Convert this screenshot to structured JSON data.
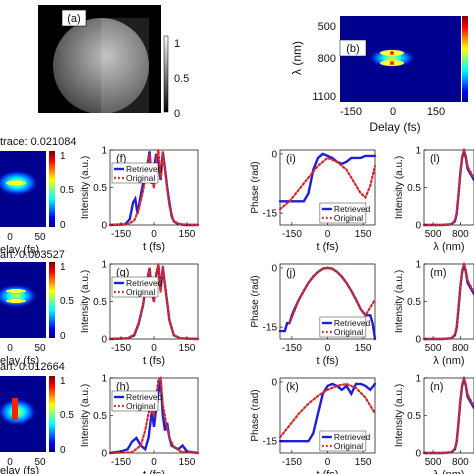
{
  "panels": {
    "a": {
      "label": "(a)",
      "colorbar_ticks": [
        "1",
        "0.5",
        "0"
      ]
    },
    "b": {
      "label": "(b)",
      "ylabel": "λ (nm)",
      "xlabel": "Delay (fs)",
      "yticks": [
        "500",
        "800",
        "1100"
      ],
      "xticks": [
        "-150",
        "0",
        "150"
      ]
    },
    "rows": [
      {
        "trace_label": "trace: 0.021084"
      },
      {
        "trace_label": "art: 0.003527"
      },
      {
        "trace_label": "art: 0.012664"
      }
    ],
    "trace_xticks": [
      "0",
      "50"
    ],
    "trace_xlabel": "elay (fs)",
    "trace_cbar_ticks": [
      "1",
      "0.5",
      "0"
    ]
  },
  "legend": {
    "retrieved": "Retrieved",
    "original": "Original"
  },
  "colors": {
    "retrieved": "#1f1fd6",
    "original": "#d42a2a"
  },
  "chart_data": [
    {
      "type": "line",
      "panel": "(f)",
      "xlabel": "t (fs)",
      "ylabel": "Intensity (a.u.)",
      "xticks": [
        "-150",
        "0",
        "150"
      ],
      "yticks": [
        "0",
        "0.5",
        "1"
      ],
      "xlim": [
        -200,
        200
      ],
      "ylim": [
        0,
        1
      ],
      "series": [
        {
          "name": "Retrieved",
          "x": [
            -200,
            -130,
            -110,
            -95,
            -85,
            -75,
            -60,
            -45,
            -30,
            -20,
            -10,
            0,
            10,
            20,
            30,
            40,
            50,
            60,
            70,
            80,
            90,
            105,
            120,
            140,
            200
          ],
          "y": [
            0,
            0.01,
            0.08,
            0.3,
            0.35,
            0.15,
            0.4,
            0.62,
            0.8,
            0.98,
            0.55,
            0.75,
            0.95,
            0.82,
            0.6,
            0.98,
            0.75,
            0.5,
            0.3,
            0.12,
            0.05,
            0.02,
            0.01,
            0,
            0
          ]
        },
        {
          "name": "Original",
          "x": [
            -200,
            -120,
            -90,
            -70,
            -50,
            -35,
            -20,
            -10,
            0,
            10,
            20,
            30,
            40,
            55,
            70,
            90,
            120,
            200
          ],
          "y": [
            0,
            0.01,
            0.06,
            0.2,
            0.45,
            0.7,
            0.95,
            0.6,
            0.5,
            0.88,
            1.0,
            0.62,
            0.98,
            0.6,
            0.25,
            0.05,
            0.01,
            0
          ]
        }
      ]
    },
    {
      "type": "line",
      "panel": "(g)",
      "xlabel": "t (fs)",
      "ylabel": "Intensity (a.u.)",
      "xticks": [
        "-150",
        "0",
        "150"
      ],
      "yticks": [
        "0",
        "0.5",
        "1"
      ],
      "xlim": [
        -200,
        200
      ],
      "ylim": [
        0,
        1
      ],
      "series": [
        {
          "name": "Retrieved",
          "x": [
            -200,
            -120,
            -90,
            -70,
            -50,
            -35,
            -20,
            -10,
            0,
            10,
            20,
            30,
            40,
            55,
            70,
            90,
            120,
            200
          ],
          "y": [
            0,
            0.01,
            0.05,
            0.2,
            0.45,
            0.72,
            0.95,
            0.62,
            0.5,
            0.85,
            0.98,
            0.65,
            0.95,
            0.6,
            0.25,
            0.05,
            0.01,
            0
          ]
        },
        {
          "name": "Original",
          "x": [
            -200,
            -120,
            -90,
            -70,
            -50,
            -35,
            -20,
            -10,
            0,
            10,
            20,
            30,
            40,
            55,
            70,
            90,
            120,
            200
          ],
          "y": [
            0,
            0.01,
            0.06,
            0.21,
            0.45,
            0.7,
            0.95,
            0.6,
            0.5,
            0.88,
            1.0,
            0.62,
            0.98,
            0.6,
            0.25,
            0.05,
            0.01,
            0
          ]
        }
      ]
    },
    {
      "type": "line",
      "panel": "(h)",
      "xlabel": "t (fs)",
      "ylabel": "Intensity (a.u.)",
      "xticks": [
        "-150",
        "0",
        "150"
      ],
      "yticks": [
        "0",
        "0.5",
        "1"
      ],
      "xlim": [
        -200,
        200
      ],
      "ylim": [
        0,
        1
      ],
      "series": [
        {
          "name": "Retrieved",
          "x": [
            -200,
            -150,
            -120,
            -100,
            -80,
            -60,
            -40,
            -25,
            -10,
            0,
            10,
            20,
            30,
            40,
            50,
            60,
            70,
            80,
            90,
            110,
            130,
            150,
            200
          ],
          "y": [
            0,
            0.02,
            0.05,
            0.15,
            0.2,
            0.1,
            0.05,
            0.2,
            0.55,
            0.35,
            0.6,
            0.8,
            0.98,
            0.5,
            0.3,
            0.4,
            0.2,
            0.1,
            0.08,
            0.05,
            0.1,
            0.02,
            0
          ]
        },
        {
          "name": "Original",
          "x": [
            -200,
            -100,
            -60,
            -40,
            -20,
            0,
            10,
            20,
            30,
            40,
            55,
            70,
            90,
            120,
            200
          ],
          "y": [
            0,
            0.01,
            0.1,
            0.3,
            0.6,
            0.5,
            0.75,
            0.98,
            1.0,
            0.65,
            0.4,
            0.2,
            0.08,
            0.02,
            0
          ]
        }
      ]
    },
    {
      "type": "line",
      "panel": "(i)",
      "xlabel": "t (fs)",
      "ylabel": "Phase (rad)",
      "xticks": [
        "-150",
        "0",
        "150"
      ],
      "yticks": [
        "0",
        "-15"
      ],
      "xlim": [
        -200,
        200
      ],
      "ylim": [
        -18,
        1
      ],
      "series": [
        {
          "name": "Retrieved",
          "x": [
            -200,
            -150,
            -120,
            -100,
            -80,
            -60,
            -40,
            -20,
            0,
            20,
            40,
            60,
            80,
            100,
            120,
            140,
            160,
            180,
            200
          ],
          "y": [
            -12,
            -12,
            -12,
            -12,
            -10,
            -4,
            -1,
            0,
            -0.5,
            -1,
            -2,
            -2.5,
            -2,
            -1,
            -1,
            -1,
            -0.5,
            -0.5,
            -0.5
          ]
        },
        {
          "name": "Original",
          "x": [
            -200,
            -160,
            -120,
            -80,
            -40,
            0,
            40,
            80,
            100,
            120,
            140,
            160,
            180,
            200
          ],
          "y": [
            -14,
            -12,
            -9,
            -6,
            -3,
            -1,
            -2,
            -4,
            -6,
            -8,
            -10,
            -11,
            -8,
            -3
          ]
        }
      ]
    },
    {
      "type": "line",
      "panel": "(j)",
      "xlabel": "t (fs)",
      "ylabel": "Phase (rad)",
      "xticks": [
        "-150",
        "0",
        "150"
      ],
      "yticks": [
        "0",
        "-15"
      ],
      "xlim": [
        -200,
        200
      ],
      "ylim": [
        -18,
        1
      ],
      "series": [
        {
          "name": "Retrieved",
          "x": [
            -200,
            -180,
            -170,
            -160,
            -150,
            -140,
            -120,
            -100,
            -80,
            -60,
            -40,
            -20,
            0,
            20,
            40,
            60,
            80,
            100,
            120,
            140,
            160,
            180,
            190,
            200
          ],
          "y": [
            -16,
            -16,
            -14,
            -14,
            -12,
            -10.5,
            -8,
            -5.8,
            -3.8,
            -2.2,
            -1,
            -0.2,
            0,
            -0.2,
            -1,
            -2.2,
            -3.8,
            -5.8,
            -8,
            -10.5,
            -12,
            -12,
            -14,
            -18
          ]
        },
        {
          "name": "Original",
          "x": [
            -160,
            -140,
            -120,
            -100,
            -80,
            -60,
            -40,
            -20,
            0,
            20,
            40,
            60,
            80,
            100,
            120,
            140,
            160,
            180,
            200
          ],
          "y": [
            -14,
            -11,
            -8,
            -5.8,
            -3.8,
            -2.2,
            -1,
            -0.2,
            0,
            -0.2,
            -1,
            -2.2,
            -3.8,
            -5.8,
            -8,
            -10.5,
            -12,
            -10,
            -8
          ]
        }
      ]
    },
    {
      "type": "line",
      "panel": "(k)",
      "xlabel": "t (fs)",
      "ylabel": "Phase (rad)",
      "xticks": [
        "-150",
        "0",
        "150"
      ],
      "yticks": [
        "0",
        "-15"
      ],
      "xlim": [
        -200,
        200
      ],
      "ylim": [
        -18,
        1
      ],
      "series": [
        {
          "name": "Retrieved",
          "x": [
            -200,
            -180,
            -160,
            -140,
            -120,
            -100,
            -80,
            -60,
            -40,
            -20,
            0,
            20,
            40,
            60,
            80,
            100,
            120,
            140,
            160,
            180,
            200
          ],
          "y": [
            -15,
            -15,
            -15,
            -15,
            -15,
            -15,
            -15,
            -13,
            -8,
            -3,
            -1,
            -0.5,
            -1,
            -2,
            -1,
            -3,
            -0.5,
            -0.5,
            -1,
            -2,
            -0.5
          ]
        },
        {
          "name": "Original",
          "x": [
            -200,
            -160,
            -120,
            -80,
            -40,
            0,
            40,
            80,
            120,
            160,
            200
          ],
          "y": [
            -14,
            -11,
            -8,
            -5.5,
            -3.5,
            -2,
            -1,
            -0.5,
            -1.5,
            -4,
            -8
          ]
        }
      ]
    },
    {
      "type": "line",
      "panel": "(l)",
      "xlabel": "λ (nm)",
      "ylabel": "Intensity (a.u.)",
      "xticks": [
        "500",
        "800"
      ],
      "yticks": [
        "0",
        "0.5",
        "1"
      ],
      "xlim": [
        400,
        950
      ],
      "ylim": [
        0,
        1
      ],
      "series": [
        {
          "name": "Retrieved",
          "x": [
            400,
            600,
            700,
            740,
            760,
            780,
            800,
            820,
            840,
            860,
            880,
            950
          ],
          "y": [
            0,
            0,
            0.01,
            0.05,
            0.15,
            0.4,
            0.7,
            0.9,
            0.98,
            0.9,
            0.75,
            0.6
          ]
        },
        {
          "name": "Original",
          "x": [
            400,
            600,
            700,
            740,
            760,
            780,
            800,
            820,
            840,
            860,
            880,
            950
          ],
          "y": [
            0,
            0,
            0.01,
            0.06,
            0.16,
            0.42,
            0.72,
            0.92,
            1.0,
            0.92,
            0.78,
            0.62
          ]
        }
      ]
    },
    {
      "type": "line",
      "panel": "(m)",
      "xlabel": "λ (nm)",
      "ylabel": "Intensity (a.u.)",
      "xticks": [
        "500",
        "800"
      ],
      "yticks": [
        "0",
        "0.5",
        "1"
      ],
      "xlim": [
        400,
        950
      ],
      "ylim": [
        0,
        1
      ],
      "series": [
        {
          "name": "Retrieved",
          "x": [
            400,
            600,
            700,
            740,
            760,
            780,
            800,
            820,
            840,
            860,
            880,
            950
          ],
          "y": [
            0,
            0,
            0.01,
            0.05,
            0.15,
            0.4,
            0.7,
            0.9,
            0.98,
            0.9,
            0.75,
            0.6
          ]
        },
        {
          "name": "Original",
          "x": [
            400,
            600,
            700,
            740,
            760,
            780,
            800,
            820,
            840,
            860,
            880,
            950
          ],
          "y": [
            0,
            0,
            0.01,
            0.06,
            0.16,
            0.42,
            0.72,
            0.92,
            1.0,
            0.92,
            0.78,
            0.62
          ]
        }
      ]
    },
    {
      "type": "line",
      "panel": "(n)",
      "xlabel": "λ (nm)",
      "ylabel": "Intensity (a.u.)",
      "xticks": [
        "500",
        "800"
      ],
      "yticks": [
        "0",
        "0.5",
        "1"
      ],
      "xlim": [
        400,
        950
      ],
      "ylim": [
        0,
        1
      ],
      "series": [
        {
          "name": "Retrieved",
          "x": [
            400,
            600,
            700,
            740,
            760,
            780,
            800,
            820,
            840,
            860,
            880,
            950
          ],
          "y": [
            0,
            0,
            0.01,
            0.05,
            0.15,
            0.4,
            0.7,
            0.9,
            0.98,
            0.9,
            0.75,
            0.6
          ]
        },
        {
          "name": "Original",
          "x": [
            400,
            600,
            700,
            740,
            760,
            780,
            800,
            820,
            840,
            860,
            880,
            950
          ],
          "y": [
            0,
            0,
            0.01,
            0.06,
            0.16,
            0.42,
            0.72,
            0.92,
            1.0,
            0.92,
            0.78,
            0.62
          ]
        }
      ]
    }
  ]
}
